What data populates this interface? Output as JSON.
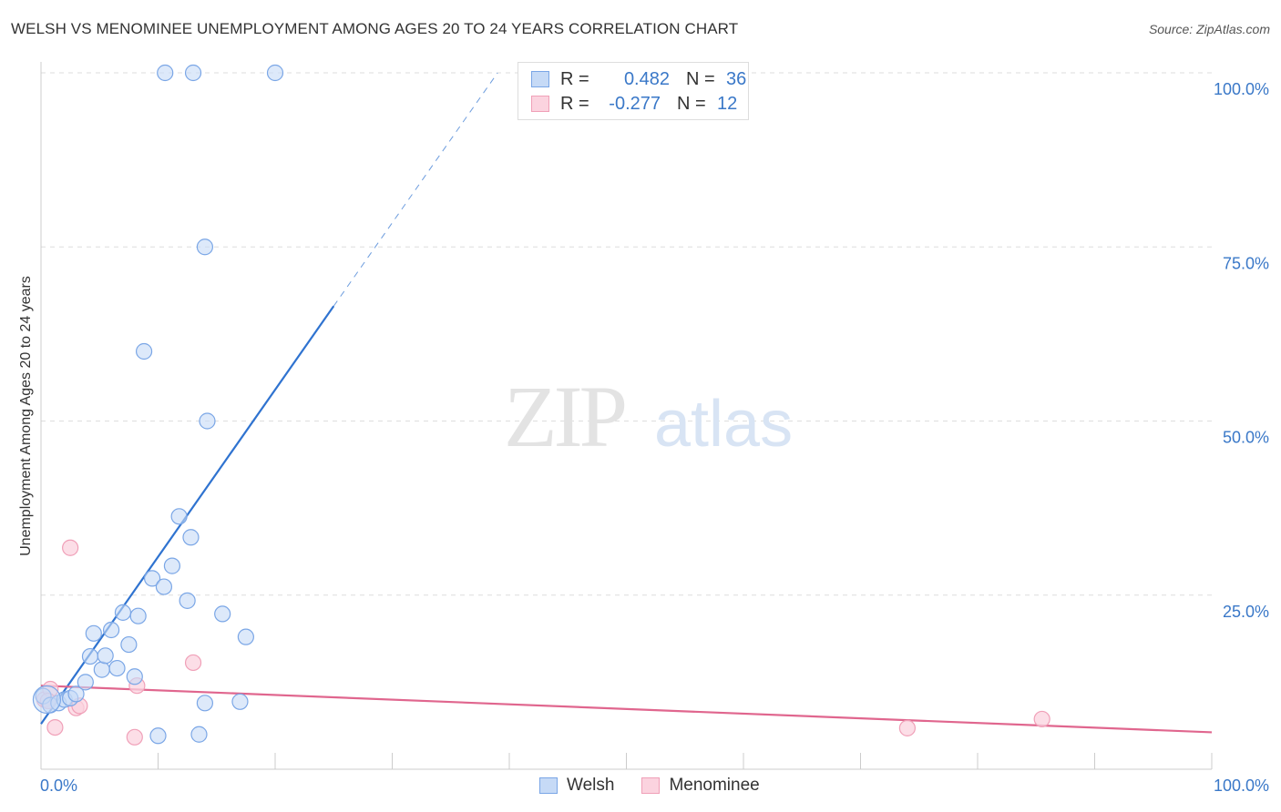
{
  "title": "WELSH VS MENOMINEE UNEMPLOYMENT AMONG AGES 20 TO 24 YEARS CORRELATION CHART",
  "source": "Source: ZipAtlas.com",
  "watermark": {
    "zip": "ZIP",
    "atlas": "atlas"
  },
  "legend": {
    "welsh": {
      "r_label": "R =",
      "r_value": "0.482",
      "n_label": "N =",
      "n_value": "36"
    },
    "menominee": {
      "r_label": "R =",
      "r_value": "-0.277",
      "n_label": "N =",
      "n_value": "12"
    }
  },
  "chart_data": {
    "type": "scatter",
    "title": "WELSH VS MENOMINEE UNEMPLOYMENT AMONG AGES 20 TO 24 YEARS CORRELATION CHART",
    "xlabel": "",
    "ylabel": "Unemployment Among Ages 20 to 24 years",
    "xlim": [
      0,
      100
    ],
    "ylim": [
      0,
      100
    ],
    "x_tick_labels": [
      "0.0%",
      "100.0%"
    ],
    "y_tick_labels": [
      "100.0%",
      "75.0%",
      "50.0%",
      "25.0%"
    ],
    "y_ticks": [
      100,
      75,
      50,
      25
    ],
    "grid": true,
    "legend_position": "top-center",
    "colors": {
      "welsh": "#7aa6e6",
      "welsh_line": "#2f73d0",
      "menominee": "#f0a0b8",
      "menominee_line": "#e0668e",
      "tick_text": "#3a78c8"
    },
    "series": [
      {
        "name": "Welsh",
        "points": [
          [
            0.2,
            10.5
          ],
          [
            0.8,
            9.2
          ],
          [
            1.5,
            9.5
          ],
          [
            2.0,
            10.0
          ],
          [
            2.5,
            10.2
          ],
          [
            3.0,
            10.8
          ],
          [
            3.8,
            12.5
          ],
          [
            4.5,
            19.5
          ],
          [
            4.2,
            16.2
          ],
          [
            5.2,
            14.3
          ],
          [
            5.5,
            16.3
          ],
          [
            6.0,
            20.0
          ],
          [
            6.5,
            14.5
          ],
          [
            7.0,
            22.5
          ],
          [
            7.5,
            17.9
          ],
          [
            8.0,
            13.3
          ],
          [
            8.3,
            22.0
          ],
          [
            9.5,
            27.4
          ],
          [
            10.5,
            26.2
          ],
          [
            11.2,
            29.2
          ],
          [
            11.8,
            36.3
          ],
          [
            12.5,
            24.2
          ],
          [
            12.8,
            33.3
          ],
          [
            14.0,
            9.5
          ],
          [
            14.2,
            50.0
          ],
          [
            15.5,
            22.3
          ],
          [
            17.0,
            9.7
          ],
          [
            17.5,
            19.0
          ],
          [
            10.0,
            4.8
          ],
          [
            13.5,
            5.0
          ],
          [
            8.8,
            60.0
          ],
          [
            14.0,
            75.0
          ],
          [
            10.6,
            100.0
          ],
          [
            13.0,
            100.0
          ],
          [
            20.0,
            100.0
          ],
          [
            0.5,
            10.0
          ]
        ],
        "trend": {
          "x1": 0.0,
          "y1": 6.5,
          "x2": 25.0,
          "y2": 66.5,
          "dashed_to": {
            "x": 39.0,
            "y": 100.0
          }
        }
      },
      {
        "name": "Menominee",
        "points": [
          [
            0.3,
            10.0
          ],
          [
            0.8,
            11.5
          ],
          [
            1.2,
            6.0
          ],
          [
            2.5,
            31.8
          ],
          [
            3.0,
            8.8
          ],
          [
            3.3,
            9.1
          ],
          [
            8.2,
            12.0
          ],
          [
            8.0,
            4.6
          ],
          [
            13.0,
            15.3
          ],
          [
            74.0,
            5.9
          ],
          [
            85.5,
            7.2
          ],
          [
            0.6,
            9.8
          ]
        ],
        "trend": {
          "x1": 0.0,
          "y1": 12.0,
          "x2": 100.0,
          "y2": 5.3
        }
      }
    ]
  },
  "bottom_legend": [
    {
      "label": "Welsh"
    },
    {
      "label": "Menominee"
    }
  ]
}
